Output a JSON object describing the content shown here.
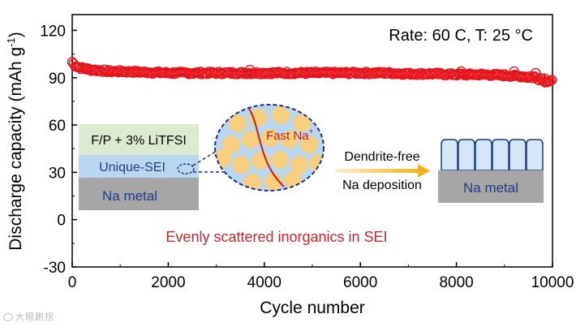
{
  "chart_data": {
    "type": "scatter",
    "xlabel": "Cycle number",
    "ylabel": "Discharge capacity (mAh g",
    "ylabel_sup": "-1",
    "ylabel_close": ")",
    "xlim": [
      0,
      10000
    ],
    "ylim": [
      -30,
      130
    ],
    "xticks": [
      0,
      2000,
      4000,
      6000,
      8000,
      10000
    ],
    "yticks": [
      -30,
      0,
      30,
      60,
      90,
      120
    ],
    "grid": false,
    "series": [
      {
        "color": "#e8141b",
        "marker": "open-circle",
        "x": [
          0,
          50,
          100,
          200,
          300,
          400,
          600,
          800,
          1000,
          1500,
          2000,
          2500,
          3000,
          3500,
          4000,
          4500,
          5000,
          5500,
          6000,
          6500,
          7000,
          7500,
          8000,
          8500,
          9000,
          9300,
          9600,
          9800,
          9900,
          10000
        ],
        "y": [
          100,
          98,
          97,
          96,
          95.5,
          95,
          94.5,
          94,
          94,
          93.5,
          93,
          93,
          93,
          93,
          93,
          93,
          93,
          93,
          93,
          93,
          92.5,
          92.5,
          92,
          92,
          91.5,
          91,
          90.5,
          89.5,
          88.5,
          88
        ]
      }
    ],
    "annotations": {
      "rate": "Rate: 60 C, T: 25 °C",
      "electrolyte": "F/P + 3% LiTFSI",
      "sei": "Unique-SEI",
      "na_metal_left": "Na metal",
      "fast_na": "Fast Na",
      "fast_na_sup": "+",
      "dendrite_free": "Dendrite-free",
      "na_deposition": "Na deposition",
      "na_metal_right": "Na metal",
      "bottom_caption": "Evenly scattered inorganics in SEI"
    }
  },
  "colors": {
    "data": "#e8141b",
    "caption": "#c8282c",
    "fast_na": "#d11a1a",
    "na_metal_text": "#1f3c88",
    "sei_text": "#1f3c88",
    "electrolyte_bg": "#dcebd0",
    "sei_bg": "#b9d7ee",
    "na_metal_bg": "#a6a6a6",
    "particle": "#f7cf7f",
    "circle_border": "#1f2f8f",
    "arrow": "#f3b316"
  },
  "watermark": "大眼跑拐"
}
